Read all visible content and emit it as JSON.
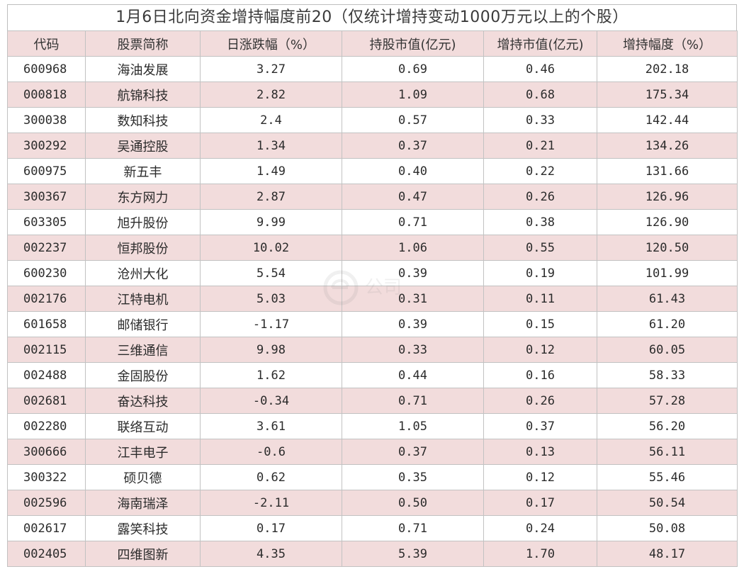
{
  "title": "1月6日北向资金增持幅度前20（仅统计增持变动1000万元以上的个股）",
  "headers": {
    "code": "代码",
    "name": "股票简称",
    "change": "日涨跌幅（%）",
    "hold_value": "持股市值(亿元)",
    "add_value": "增持市值(亿元)",
    "add_ratio": "增持幅度（%）"
  },
  "rows": [
    {
      "code": "600968",
      "name": "海油发展",
      "change": "3.27",
      "hold_value": "0.69",
      "add_value": "0.46",
      "add_ratio": "202.18"
    },
    {
      "code": "000818",
      "name": "航锦科技",
      "change": "2.82",
      "hold_value": "1.09",
      "add_value": "0.68",
      "add_ratio": "175.34"
    },
    {
      "code": "300038",
      "name": "数知科技",
      "change": "2.4",
      "hold_value": "0.57",
      "add_value": "0.33",
      "add_ratio": "142.44"
    },
    {
      "code": "300292",
      "name": "吴通控股",
      "change": "1.34",
      "hold_value": "0.37",
      "add_value": "0.21",
      "add_ratio": "134.26"
    },
    {
      "code": "600975",
      "name": "新五丰",
      "change": "1.49",
      "hold_value": "0.40",
      "add_value": "0.22",
      "add_ratio": "131.66"
    },
    {
      "code": "300367",
      "name": "东方网力",
      "change": "2.87",
      "hold_value": "0.47",
      "add_value": "0.26",
      "add_ratio": "126.96"
    },
    {
      "code": "603305",
      "name": "旭升股份",
      "change": "9.99",
      "hold_value": "0.71",
      "add_value": "0.38",
      "add_ratio": "126.90"
    },
    {
      "code": "002237",
      "name": "恒邦股份",
      "change": "10.02",
      "hold_value": "1.06",
      "add_value": "0.55",
      "add_ratio": "120.50"
    },
    {
      "code": "600230",
      "name": "沧州大化",
      "change": "5.54",
      "hold_value": "0.39",
      "add_value": "0.19",
      "add_ratio": "101.99"
    },
    {
      "code": "002176",
      "name": "江特电机",
      "change": "5.03",
      "hold_value": "0.31",
      "add_value": "0.11",
      "add_ratio": "61.43"
    },
    {
      "code": "601658",
      "name": "邮储银行",
      "change": "-1.17",
      "hold_value": "0.39",
      "add_value": "0.15",
      "add_ratio": "61.20"
    },
    {
      "code": "002115",
      "name": "三维通信",
      "change": "9.98",
      "hold_value": "0.33",
      "add_value": "0.12",
      "add_ratio": "60.05"
    },
    {
      "code": "002488",
      "name": "金固股份",
      "change": "1.62",
      "hold_value": "0.44",
      "add_value": "0.16",
      "add_ratio": "58.33"
    },
    {
      "code": "002681",
      "name": "奋达科技",
      "change": "-0.34",
      "hold_value": "0.71",
      "add_value": "0.26",
      "add_ratio": "57.28"
    },
    {
      "code": "002280",
      "name": "联络互动",
      "change": "3.61",
      "hold_value": "1.05",
      "add_value": "0.37",
      "add_ratio": "56.20"
    },
    {
      "code": "300666",
      "name": "江丰电子",
      "change": "-0.6",
      "hold_value": "0.37",
      "add_value": "0.13",
      "add_ratio": "56.11"
    },
    {
      "code": "300322",
      "name": "硕贝德",
      "change": "0.62",
      "hold_value": "0.35",
      "add_value": "0.12",
      "add_ratio": "55.46"
    },
    {
      "code": "002596",
      "name": "海南瑞泽",
      "change": "-2.11",
      "hold_value": "0.50",
      "add_value": "0.17",
      "add_ratio": "50.54"
    },
    {
      "code": "002617",
      "name": "露笑科技",
      "change": "0.17",
      "hold_value": "0.71",
      "add_value": "0.24",
      "add_ratio": "50.08"
    },
    {
      "code": "002405",
      "name": "四维图新",
      "change": "4.35",
      "hold_value": "5.39",
      "add_value": "1.70",
      "add_ratio": "48.17"
    }
  ],
  "watermark": {
    "icon": "brand-logo-icon",
    "text": "公司"
  }
}
